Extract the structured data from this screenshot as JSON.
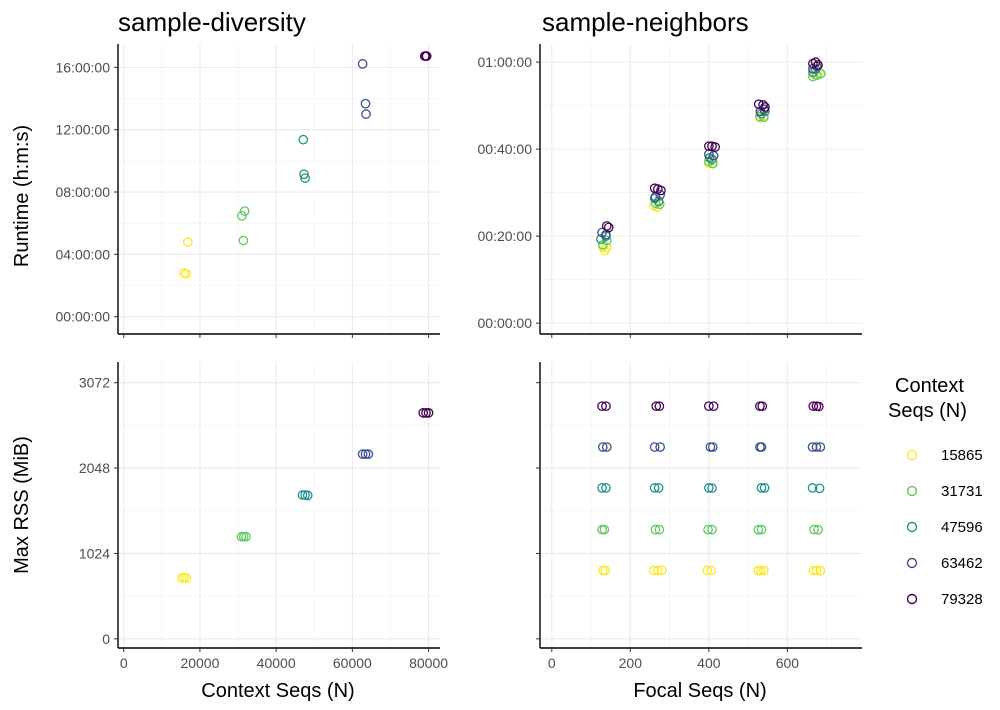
{
  "chart_data": [
    {
      "type": "scatter",
      "title": "sample-diversity",
      "xlabel": "",
      "ylabel": "Runtime (h:m:s)",
      "xlim": [
        -1500,
        83000
      ],
      "ylim": [
        -4000,
        63000
      ],
      "x_ticks": [
        0,
        20000,
        40000,
        60000,
        80000
      ],
      "y_ticks": [
        0,
        14400,
        28800,
        43200,
        57600
      ],
      "y_tick_labels": [
        "00:00:00",
        "04:00:00",
        "08:00:00",
        "12:00:00",
        "16:00:00"
      ],
      "show_x_tick_labels": false,
      "show_y_tick_labels": true,
      "series": [
        {
          "name": "15865",
          "color": "#FDE725",
          "points": [
            [
              15865,
              10100
            ],
            [
              16400,
              9900
            ],
            [
              16800,
              17200
            ]
          ]
        },
        {
          "name": "31731",
          "color": "#5EC962",
          "points": [
            [
              31000,
              23300
            ],
            [
              31731,
              24400
            ],
            [
              31400,
              17600
            ]
          ]
        },
        {
          "name": "47596",
          "color": "#21918C",
          "points": [
            [
              47100,
              40900
            ],
            [
              47300,
              32900
            ],
            [
              47596,
              32000
            ]
          ]
        },
        {
          "name": "63462",
          "color": "#3B528B",
          "points": [
            [
              62700,
              58400
            ],
            [
              63462,
              49200
            ],
            [
              63600,
              46800
            ]
          ]
        },
        {
          "name": "79328",
          "color": "#440154",
          "points": [
            [
              79000,
              60200
            ],
            [
              79328,
              60200
            ],
            [
              79500,
              60200
            ]
          ]
        }
      ]
    },
    {
      "type": "scatter",
      "title": "sample-neighbors",
      "xlabel": "",
      "ylabel": "",
      "xlim": [
        -30,
        790
      ],
      "ylim": [
        -150,
        3850
      ],
      "x_ticks": [
        0,
        200,
        400,
        600
      ],
      "y_ticks": [
        0,
        1200,
        2400,
        3600
      ],
      "y_tick_labels": [
        "00:00:00",
        "00:20:00",
        "00:40:00",
        "01:00:00"
      ],
      "show_x_tick_labels": false,
      "show_y_tick_labels": true,
      "series": [
        {
          "name": "15865",
          "color": "#FDE725",
          "points": [
            [
              130,
              1050
            ],
            [
              135,
              1000
            ],
            [
              140,
              1040
            ],
            [
              260,
              1620
            ],
            [
              270,
              1600
            ],
            [
              400,
              2200
            ],
            [
              410,
              2230
            ],
            [
              530,
              2830
            ],
            [
              540,
              2860
            ],
            [
              670,
              3420
            ],
            [
              680,
              3450
            ]
          ]
        },
        {
          "name": "31731",
          "color": "#5EC962",
          "points": [
            [
              130,
              1080
            ],
            [
              140,
              1140
            ],
            [
              265,
              1650
            ],
            [
              275,
              1640
            ],
            [
              400,
              2230
            ],
            [
              410,
              2200
            ],
            [
              530,
              2850
            ],
            [
              540,
              2840
            ],
            [
              665,
              3400
            ],
            [
              675,
              3420
            ],
            [
              685,
              3440
            ]
          ]
        },
        {
          "name": "47596",
          "color": "#21918C",
          "points": [
            [
              125,
              1160
            ],
            [
              138,
              1200
            ],
            [
              262,
              1720
            ],
            [
              272,
              1680
            ],
            [
              402,
              2280
            ],
            [
              408,
              2260
            ],
            [
              533,
              2890
            ],
            [
              543,
              2920
            ],
            [
              665,
              3460
            ],
            [
              672,
              3500
            ]
          ]
        },
        {
          "name": "63462",
          "color": "#3B528B",
          "points": [
            [
              128,
              1250
            ],
            [
              138,
              1220
            ],
            [
              264,
              1740
            ],
            [
              276,
              1770
            ],
            [
              400,
              2330
            ],
            [
              412,
              2310
            ],
            [
              531,
              2920
            ],
            [
              541,
              2950
            ],
            [
              665,
              3510
            ],
            [
              675,
              3540
            ]
          ]
        },
        {
          "name": "79328",
          "color": "#440154",
          "points": [
            [
              140,
              1340
            ],
            [
              145,
              1320
            ],
            [
              262,
              1860
            ],
            [
              270,
              1850
            ],
            [
              278,
              1830
            ],
            [
              400,
              2440
            ],
            [
              408,
              2440
            ],
            [
              416,
              2430
            ],
            [
              527,
              3020
            ],
            [
              538,
              3010
            ],
            [
              543,
              2980
            ],
            [
              665,
              3580
            ],
            [
              672,
              3600
            ],
            [
              678,
              3560
            ]
          ]
        }
      ]
    },
    {
      "type": "scatter",
      "title": "",
      "xlabel": "Context Seqs (N)",
      "ylabel": "Max RSS (MiB)",
      "xlim": [
        -1500,
        83000
      ],
      "ylim": [
        -110,
        3320
      ],
      "x_ticks": [
        0,
        20000,
        40000,
        60000,
        80000
      ],
      "x_tick_labels": [
        "0",
        "20000",
        "40000",
        "60000",
        "80000"
      ],
      "y_ticks": [
        0,
        1024,
        2048,
        3072
      ],
      "y_tick_labels": [
        "0",
        "1024",
        "2048",
        "3072"
      ],
      "show_x_tick_labels": true,
      "show_y_tick_labels": true,
      "series": [
        {
          "name": "15865",
          "color": "#FDE725",
          "points": [
            [
              15300,
              730
            ],
            [
              15865,
              735
            ],
            [
              16500,
              730
            ]
          ]
        },
        {
          "name": "31731",
          "color": "#5EC962",
          "points": [
            [
              30900,
              1225
            ],
            [
              31500,
              1225
            ],
            [
              32100,
              1225
            ]
          ]
        },
        {
          "name": "47596",
          "color": "#21918C",
          "points": [
            [
              46900,
              1725
            ],
            [
              47596,
              1725
            ],
            [
              48300,
              1720
            ]
          ]
        },
        {
          "name": "63462",
          "color": "#3B528B",
          "points": [
            [
              62700,
              2215
            ],
            [
              63462,
              2215
            ],
            [
              64200,
              2215
            ]
          ]
        },
        {
          "name": "79328",
          "color": "#440154",
          "points": [
            [
              78600,
              2710
            ],
            [
              79328,
              2710
            ],
            [
              80000,
              2710
            ]
          ]
        }
      ]
    },
    {
      "type": "scatter",
      "title": "",
      "xlabel": "Focal Seqs (N)",
      "ylabel": "",
      "xlim": [
        -30,
        790
      ],
      "ylim": [
        -110,
        3320
      ],
      "x_ticks": [
        0,
        200,
        400,
        600
      ],
      "x_tick_labels": [
        "0",
        "200",
        "400",
        "600"
      ],
      "y_ticks": [
        0,
        1024,
        2048,
        3072
      ],
      "show_x_tick_labels": true,
      "show_y_tick_labels": false,
      "series": [
        {
          "name": "15865",
          "color": "#FDE725",
          "points": [
            [
              130,
              820
            ],
            [
              136,
              820
            ],
            [
              260,
              820
            ],
            [
              270,
              820
            ],
            [
              280,
              822
            ],
            [
              396,
              820
            ],
            [
              406,
              820
            ],
            [
              526,
              818
            ],
            [
              532,
              818
            ],
            [
              540,
              820
            ],
            [
              666,
              820
            ],
            [
              674,
              820
            ],
            [
              684,
              818
            ]
          ]
        },
        {
          "name": "31731",
          "color": "#5EC962",
          "points": [
            [
              128,
              1310
            ],
            [
              134,
              1310
            ],
            [
              264,
              1310
            ],
            [
              274,
              1310
            ],
            [
              398,
              1310
            ],
            [
              408,
              1310
            ],
            [
              526,
              1308
            ],
            [
              534,
              1310
            ],
            [
              668,
              1310
            ],
            [
              678,
              1308
            ]
          ]
        },
        {
          "name": "47596",
          "color": "#21918C",
          "points": [
            [
              128,
              1810
            ],
            [
              138,
              1810
            ],
            [
              262,
              1810
            ],
            [
              272,
              1810
            ],
            [
              400,
              1810
            ],
            [
              408,
              1808
            ],
            [
              534,
              1810
            ],
            [
              542,
              1810
            ],
            [
              664,
              1810
            ],
            [
              682,
              1805
            ]
          ]
        },
        {
          "name": "63462",
          "color": "#3B528B",
          "points": [
            [
              130,
              2300
            ],
            [
              140,
              2300
            ],
            [
              262,
              2300
            ],
            [
              276,
              2300
            ],
            [
              404,
              2300
            ],
            [
              410,
              2300
            ],
            [
              530,
              2300
            ],
            [
              534,
              2300
            ],
            [
              664,
              2300
            ],
            [
              674,
              2300
            ],
            [
              684,
              2300
            ]
          ]
        },
        {
          "name": "79328",
          "color": "#440154",
          "points": [
            [
              128,
              2790
            ],
            [
              138,
              2790
            ],
            [
              266,
              2790
            ],
            [
              274,
              2790
            ],
            [
              400,
              2790
            ],
            [
              412,
              2790
            ],
            [
              530,
              2790
            ],
            [
              536,
              2790
            ],
            [
              666,
              2790
            ],
            [
              674,
              2790
            ],
            [
              680,
              2785
            ]
          ]
        }
      ]
    }
  ],
  "legend": {
    "title_line1": "Context",
    "title_line2": "Seqs (N)",
    "placement": "right",
    "entries": [
      {
        "label": "15865",
        "color": "#FDE725"
      },
      {
        "label": "31731",
        "color": "#5EC962"
      },
      {
        "label": "47596",
        "color": "#21918C"
      },
      {
        "label": "63462",
        "color": "#3B528B"
      },
      {
        "label": "79328",
        "color": "#440154"
      }
    ]
  }
}
